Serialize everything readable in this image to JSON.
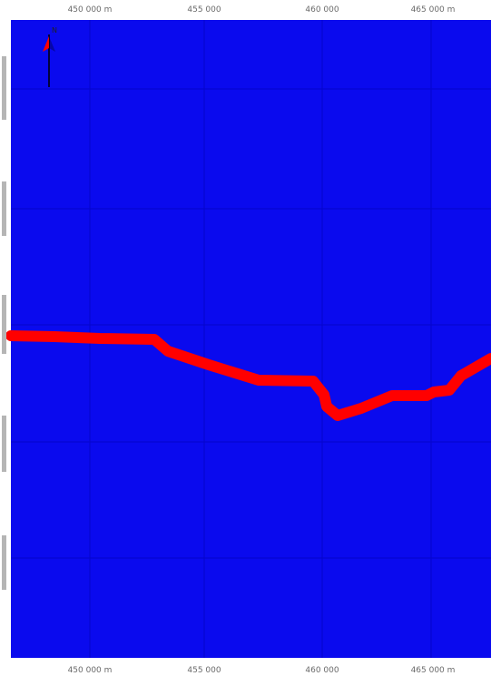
{
  "map": {
    "water_color": "#0a0aee",
    "line_color": "#ff0000",
    "grid_color": "#0000b0",
    "north_arrow": {
      "icon": "north-arrow-icon",
      "label": "N"
    },
    "x_ticks": [
      {
        "value": 450000,
        "label": "450 000 m"
      },
      {
        "value": 455000,
        "label": "455 000"
      },
      {
        "value": 460000,
        "label": "460 000"
      },
      {
        "value": 465000,
        "label": "465 000 m"
      }
    ],
    "y_tick_count": 5
  }
}
